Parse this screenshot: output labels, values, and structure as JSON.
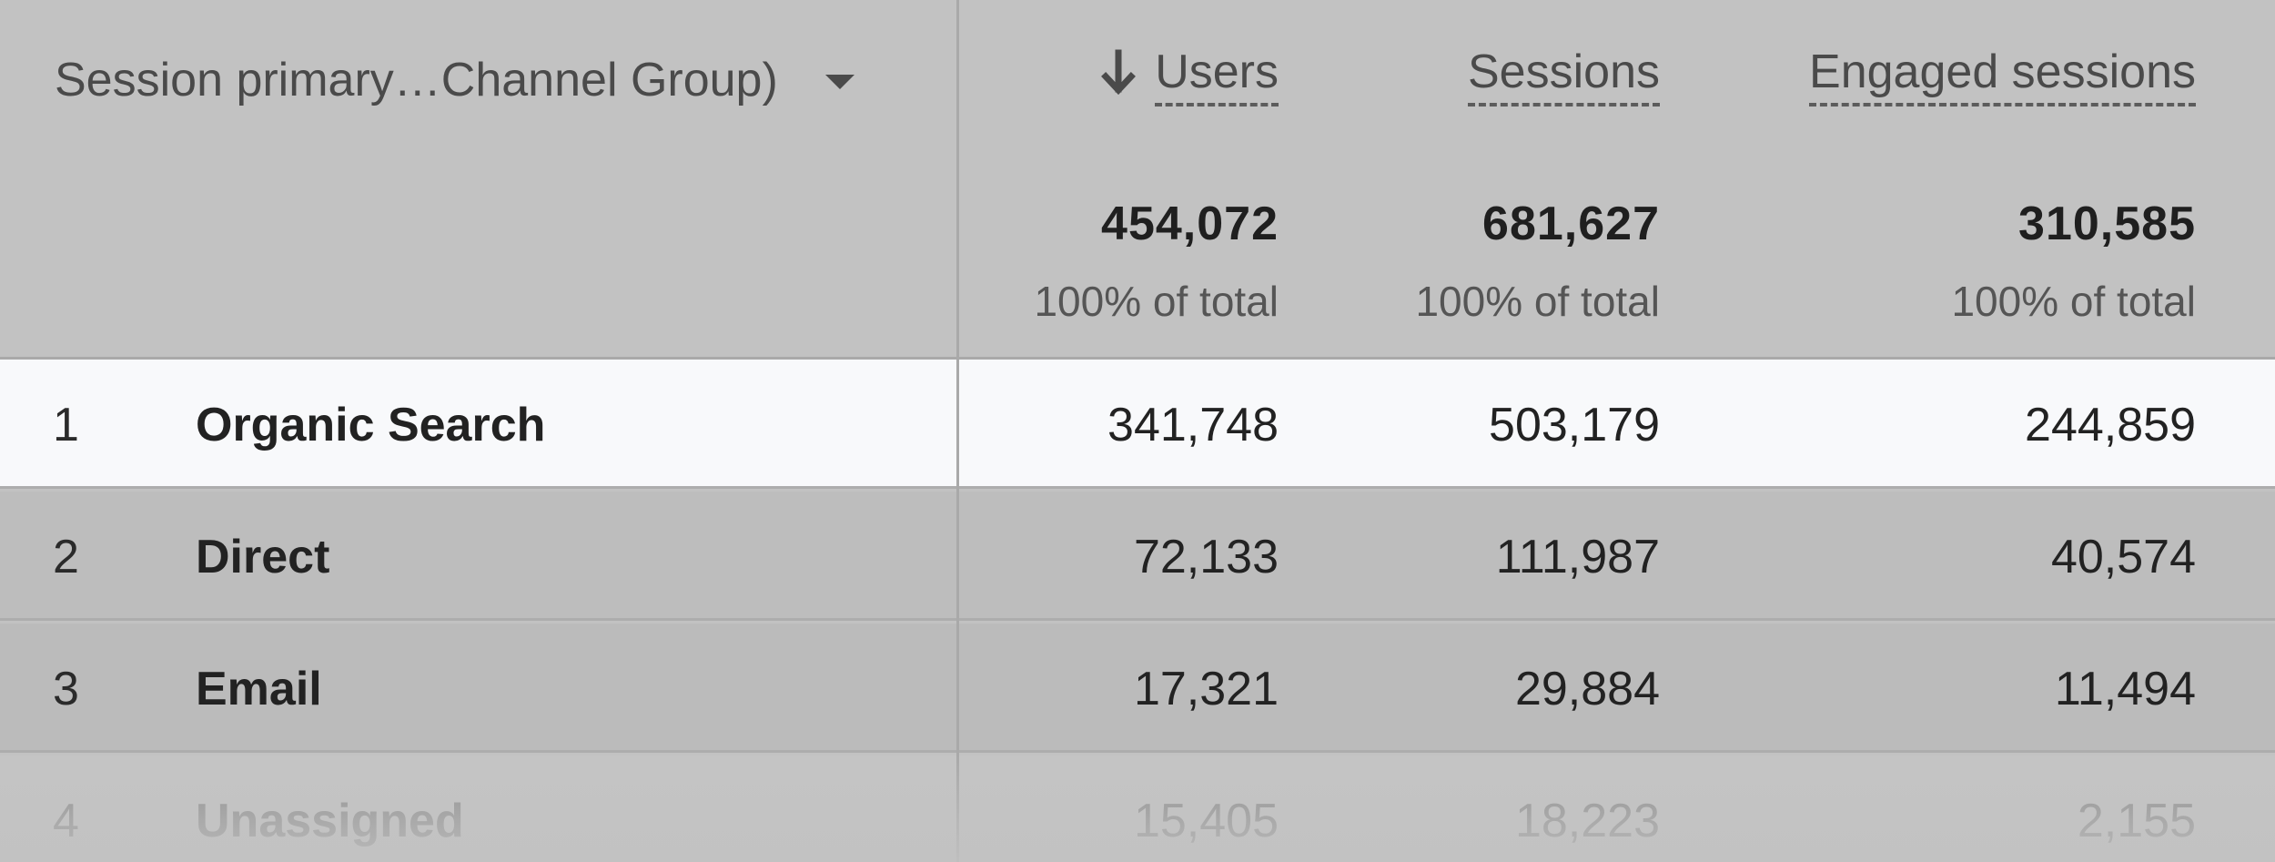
{
  "dimension_header": "Session primary…Channel Group)",
  "metrics": [
    {
      "key": "users",
      "label": "Users",
      "sorted": true,
      "total": "454,072",
      "pct": "100% of total"
    },
    {
      "key": "sessions",
      "label": "Sessions",
      "sorted": false,
      "total": "681,627",
      "pct": "100% of total"
    },
    {
      "key": "engaged",
      "label": "Engaged sessions",
      "sorted": false,
      "total": "310,585",
      "pct": "100% of total"
    }
  ],
  "rows": [
    {
      "index": "1",
      "name": "Organic Search",
      "users": "341,748",
      "sessions": "503,179",
      "engaged": "244,859"
    },
    {
      "index": "2",
      "name": "Direct",
      "users": "72,133",
      "sessions": "111,987",
      "engaged": "40,574"
    },
    {
      "index": "3",
      "name": "Email",
      "users": "17,321",
      "sessions": "29,884",
      "engaged": "11,494"
    },
    {
      "index": "4",
      "name": "Unassigned",
      "users": "15,405",
      "sessions": "18,223",
      "engaged": "2,155"
    }
  ],
  "icons": {
    "sort": "arrow-down-icon",
    "dropdown": "caret-down-icon"
  },
  "colors": {
    "highlight_row": "#f8f9fb",
    "overlay": "#c2c2c2"
  }
}
